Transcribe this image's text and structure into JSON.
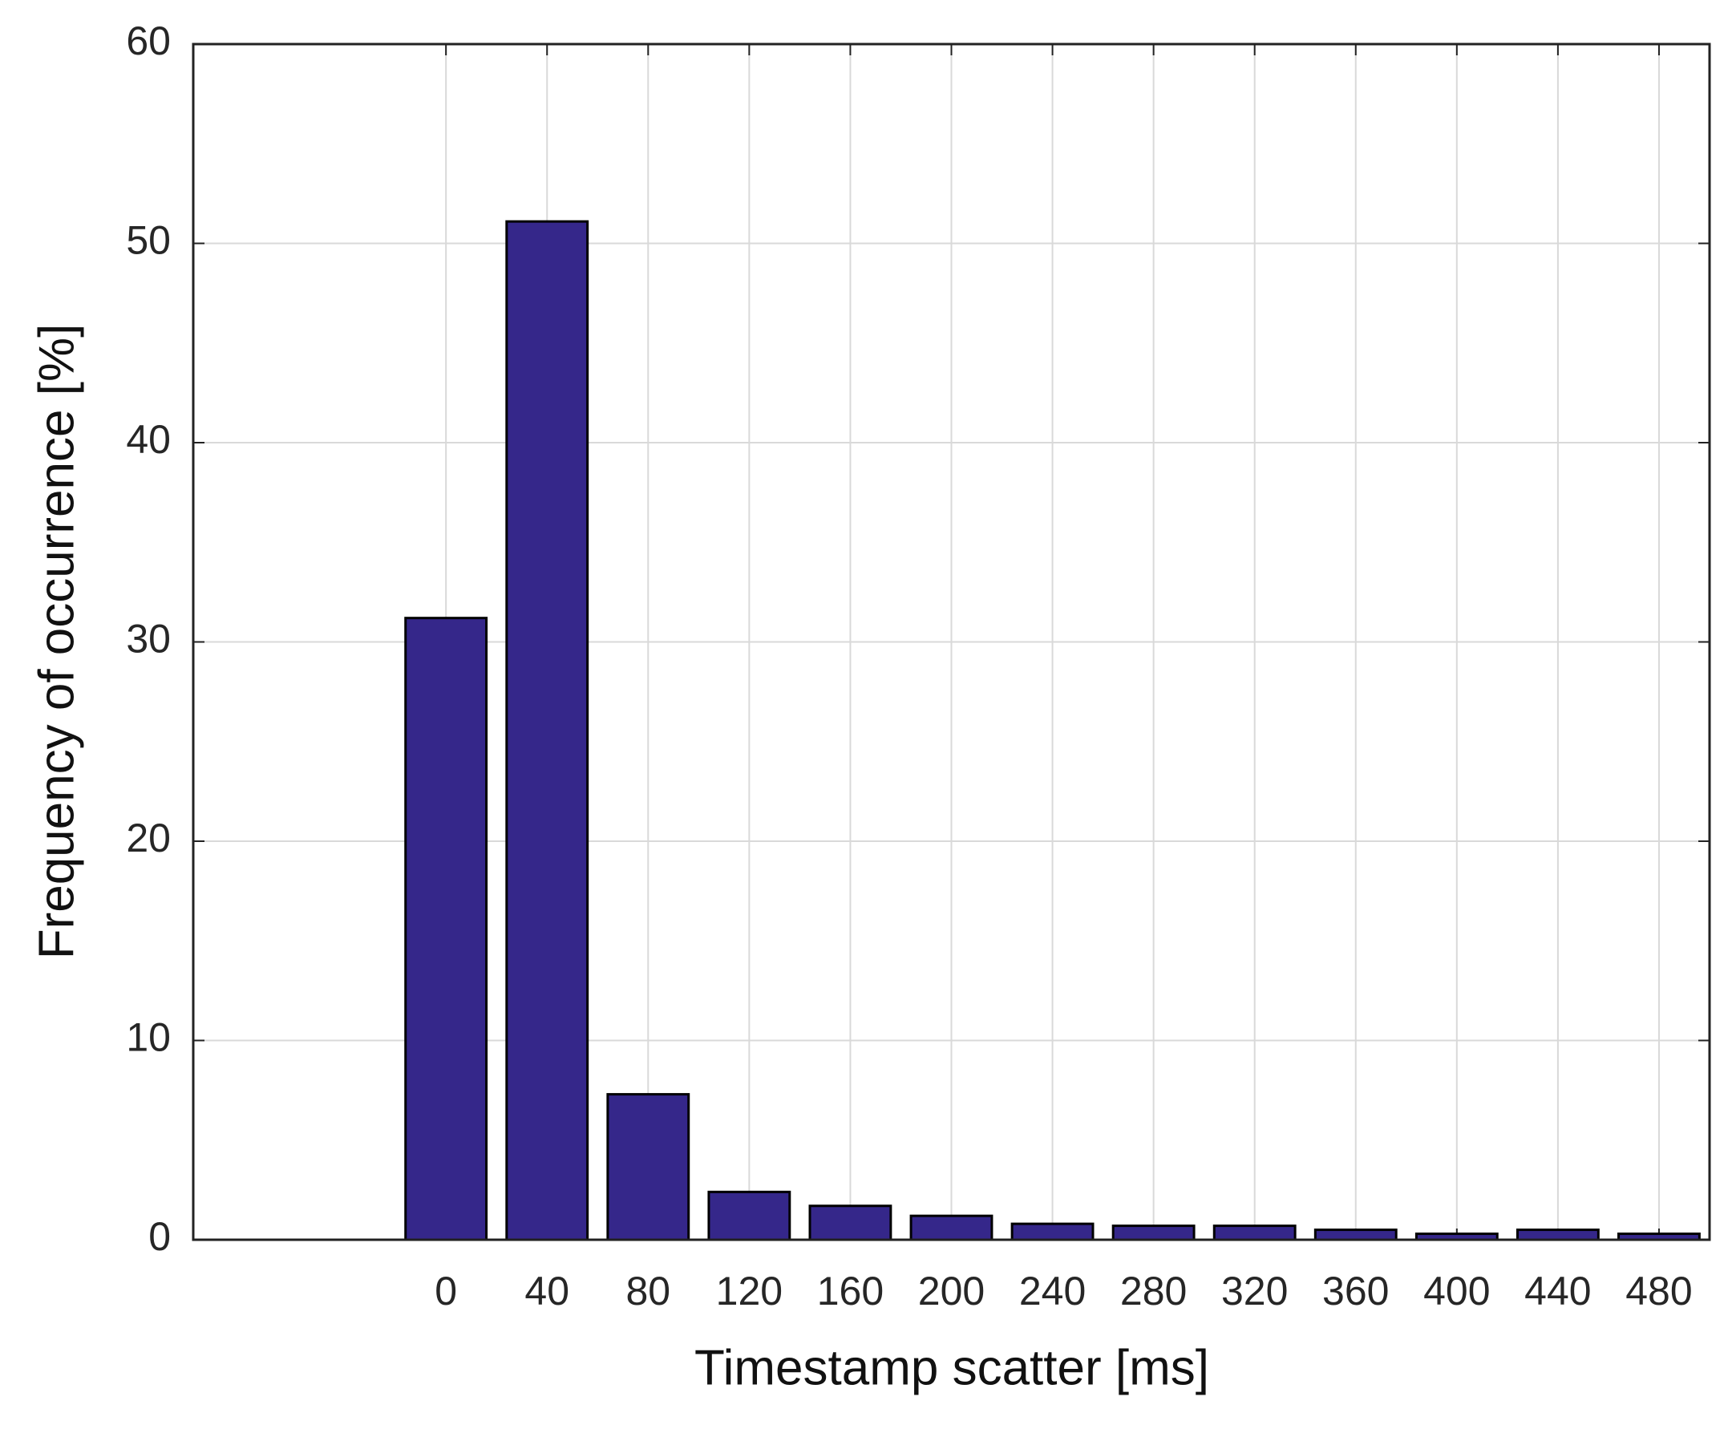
{
  "chart_data": {
    "type": "bar",
    "x_label": "Timestamp scatter [ms]",
    "y_label": "Frequency of occurrence [%]",
    "x": [
      0,
      40,
      80,
      120,
      160,
      200,
      240,
      280,
      320,
      360,
      400,
      440,
      480
    ],
    "values": [
      31.2,
      51.1,
      7.3,
      2.4,
      1.7,
      1.2,
      0.8,
      0.7,
      0.7,
      0.5,
      0.3,
      0.5,
      0.3
    ],
    "color": "#35278a",
    "xlim": [
      -100,
      500
    ],
    "xticks": [
      0,
      40,
      80,
      120,
      160,
      200,
      240,
      280,
      320,
      360,
      400,
      440,
      480
    ],
    "ylim": [
      0,
      60
    ],
    "yticks": [
      0,
      10,
      20,
      30,
      40,
      50,
      60
    ],
    "grid": true
  }
}
